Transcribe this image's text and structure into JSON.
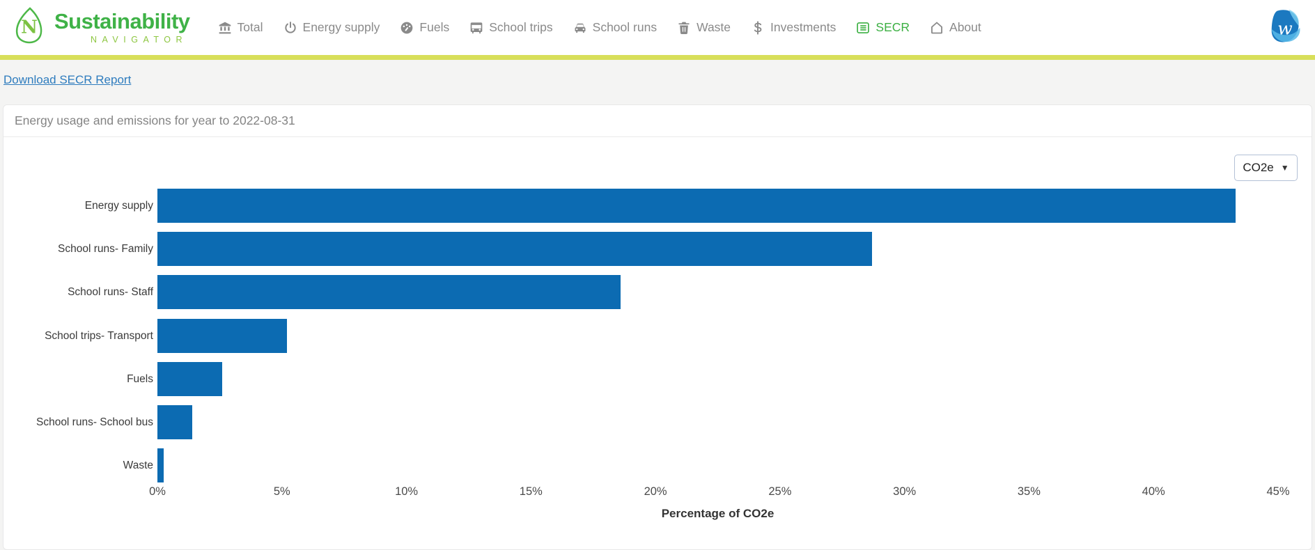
{
  "nav": {
    "brand": {
      "title": "Sustainability",
      "subtitle": "NAVIGATOR"
    },
    "items": [
      {
        "label": "Total",
        "icon": "bank-icon"
      },
      {
        "label": "Energy supply",
        "icon": "power-icon"
      },
      {
        "label": "Fuels",
        "icon": "gauge-icon"
      },
      {
        "label": "School trips",
        "icon": "bus-icon"
      },
      {
        "label": "School runs",
        "icon": "car-icon"
      },
      {
        "label": "Waste",
        "icon": "trash-icon"
      },
      {
        "label": "Investments",
        "icon": "dollar-icon"
      },
      {
        "label": "SECR",
        "icon": "list-icon",
        "active": true
      },
      {
        "label": "About",
        "icon": "home-icon"
      }
    ]
  },
  "toolbar": {
    "download_link": "Download SECR Report"
  },
  "card": {
    "title": "Energy usage and emissions for year to 2022-08-31"
  },
  "unit_select": {
    "value": "CO2e"
  },
  "chart_data": {
    "type": "bar",
    "orientation": "horizontal",
    "categories": [
      "Energy supply",
      "School runs- Family",
      "School runs- Staff",
      "School trips- Transport",
      "Fuels",
      "School runs- School bus",
      "Waste"
    ],
    "values": [
      43.3,
      28.7,
      18.6,
      5.2,
      2.6,
      1.4,
      0.25
    ],
    "title": "Energy usage and emissions for year to 2022-08-31",
    "xlabel": "Percentage of CO2e",
    "ylabel": "",
    "xlim": [
      0,
      45
    ],
    "xticks": [
      "0%",
      "5%",
      "10%",
      "15%",
      "20%",
      "25%",
      "30%",
      "35%",
      "40%",
      "45%"
    ],
    "grid": false,
    "legend": "none",
    "bar_color": "#0c6bb2"
  },
  "colors": {
    "brand_green": "#3fb247",
    "navigator_green": "#8cc63f",
    "nav_green": "#3cb043",
    "divider_yellow": "#d8df5a",
    "link_blue": "#2e7cbe",
    "bar_blue": "#0c6bb2"
  }
}
